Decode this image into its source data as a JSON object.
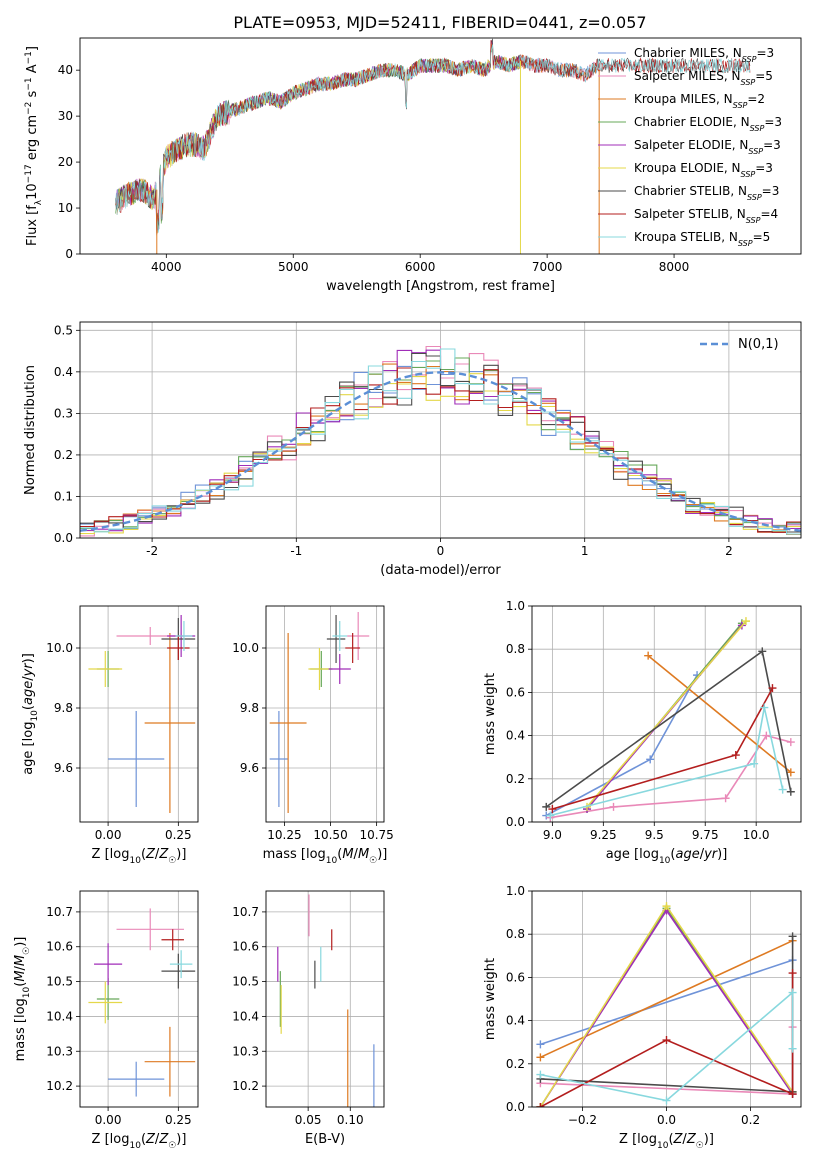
{
  "figure": {
    "title": "PLATE=0953, MJD=52411, FIBERID=0441, z=0.057"
  },
  "colors": {
    "Chabrier MILES": "#6f93d8",
    "Salpeter MILES": "#e989b8",
    "Kroupa MILES": "#de7a22",
    "Chabrier ELODIE": "#67a85a",
    "Salpeter ELODIE": "#a02db8",
    "Kroupa ELODIE": "#e4d84a",
    "Chabrier STELIB": "#4b4b4b",
    "Salpeter STELIB": "#b31e1e",
    "Kroupa STELIB": "#88d8de"
  },
  "legend": {
    "series": [
      {
        "name": "Chabrier MILES",
        "label": "Chabrier MILES, N",
        "sub": "SSP",
        "tail": "=3"
      },
      {
        "name": "Salpeter MILES",
        "label": "Salpeter MILES, N",
        "sub": "SSP",
        "tail": "=5"
      },
      {
        "name": "Kroupa MILES",
        "label": "Kroupa MILES, N",
        "sub": "SSP",
        "tail": "=2"
      },
      {
        "name": "Chabrier ELODIE",
        "label": "Chabrier ELODIE, N",
        "sub": "SSP",
        "tail": "=3"
      },
      {
        "name": "Salpeter ELODIE",
        "label": "Salpeter ELODIE, N",
        "sub": "SSP",
        "tail": "=3"
      },
      {
        "name": "Kroupa ELODIE",
        "label": "Kroupa ELODIE, N",
        "sub": "SSP",
        "tail": "=3"
      },
      {
        "name": "Chabrier STELIB",
        "label": "Chabrier STELIB, N",
        "sub": "SSP",
        "tail": "=3"
      },
      {
        "name": "Salpeter STELIB",
        "label": "Salpeter STELIB, N",
        "sub": "SSP",
        "tail": "=4"
      },
      {
        "name": "Kroupa STELIB",
        "label": "Kroupa STELIB, N",
        "sub": "SSP",
        "tail": "=5"
      }
    ],
    "normal_label": "N(0,1)"
  },
  "chart_data": [
    {
      "id": "spectrum",
      "type": "line",
      "xlabel": "wavelength [Angstrom, rest frame]",
      "ylabel": "Flux [f_λ10^-17 erg cm^-2 s^-1 A^-1]",
      "xlim": [
        3320,
        9000
      ],
      "ylim": [
        0,
        47
      ],
      "xticks": [
        4000,
        5000,
        6000,
        7000,
        8000
      ],
      "yticks": [
        0,
        10,
        20,
        30,
        40
      ],
      "grid": false,
      "legend_position": "top-right",
      "data_x": [
        3600,
        3700,
        3800,
        3900,
        4000,
        4100,
        4200,
        4300,
        4400,
        4500,
        4600,
        4700,
        4800,
        4900,
        5000,
        5100,
        5200,
        5300,
        5400,
        5500,
        5600,
        5700,
        5800,
        5900,
        6000,
        6100,
        6200,
        6300,
        6400,
        6500,
        6600,
        6700,
        6800,
        6900,
        7000,
        7100,
        7200,
        7300,
        7400
      ],
      "data_y": [
        11,
        13,
        14,
        12,
        21,
        23,
        24,
        23,
        30,
        31,
        32,
        33,
        34,
        33,
        35,
        36,
        37,
        37,
        38,
        38,
        39,
        40,
        40,
        39,
        41,
        41,
        41,
        40,
        41,
        40,
        42,
        41,
        42,
        41,
        41,
        40,
        40,
        39,
        41
      ],
      "series_x_range": {
        "Chabrier MILES": [
          3600,
          7400
        ],
        "Salpeter MILES": [
          3600,
          7400
        ],
        "Kroupa MILES": [
          3600,
          7400
        ],
        "Chabrier ELODIE": [
          3600,
          6800
        ],
        "Salpeter ELODIE": [
          3600,
          6800
        ],
        "Kroupa ELODIE": [
          3600,
          6800
        ],
        "Chabrier STELIB": [
          3600,
          8600
        ],
        "Salpeter STELIB": [
          3600,
          8600
        ],
        "Kroupa STELIB": [
          3600,
          8600
        ]
      }
    },
    {
      "id": "histogram",
      "type": "line",
      "xlabel": "(data-model)/error",
      "ylabel": "Normed distribution",
      "xlim": [
        -2.5,
        2.5
      ],
      "ylim": [
        0,
        0.52
      ],
      "xticks": [
        -2,
        -1,
        0,
        1,
        2
      ],
      "yticks": [
        0.0,
        0.1,
        0.2,
        0.3,
        0.4,
        0.5
      ],
      "grid": true,
      "legend_position": "top-right",
      "bin_width": 0.1,
      "bin_start": -2.5,
      "normal_curve": {
        "mean": 0,
        "sigma": 1
      }
    },
    {
      "id": "age-vs-Z",
      "type": "scatter",
      "xlabel": "Z [log10(Z/Z☉)]",
      "ylabel": "age  [log10(age/yr)]",
      "xlim": [
        -0.1,
        0.32
      ],
      "ylim": [
        9.42,
        10.14
      ],
      "xticks": [
        0.0,
        0.25
      ],
      "yticks": [
        9.6,
        9.8,
        10.0
      ],
      "grid": true,
      "points": [
        {
          "series": "Chabrier MILES",
          "x": 0.1,
          "y": 9.63,
          "xerr": 0.1,
          "yerr": 0.16
        },
        {
          "series": "Kroupa MILES",
          "x": 0.22,
          "y": 9.75,
          "xerr": 0.09,
          "yerr": 0.3
        },
        {
          "series": "Salpeter MILES",
          "x": 0.15,
          "y": 10.04,
          "xerr": 0.12,
          "yerr": 0.03
        },
        {
          "series": "Chabrier ELODIE",
          "x": 0.0,
          "y": 9.93,
          "xerr": 0.04,
          "yerr": 0.06
        },
        {
          "series": "Kroupa ELODIE",
          "x": -0.01,
          "y": 9.93,
          "xerr": 0.06,
          "yerr": 0.06
        },
        {
          "series": "Salpeter ELODIE",
          "x": 0.26,
          "y": 10.04,
          "xerr": 0.05,
          "yerr": 0.07
        },
        {
          "series": "Chabrier STELIB",
          "x": 0.25,
          "y": 10.03,
          "xerr": 0.06,
          "yerr": 0.07
        },
        {
          "series": "Salpeter STELIB",
          "x": 0.25,
          "y": 10.0,
          "xerr": 0.04,
          "yerr": 0.04
        },
        {
          "series": "Kroupa STELIB",
          "x": 0.27,
          "y": 10.04,
          "xerr": 0.03,
          "yerr": 0.05
        }
      ]
    },
    {
      "id": "age-vs-mass",
      "type": "scatter",
      "xlabel": "mass [log10(M/M☉)]",
      "ylabel": "",
      "xlim": [
        10.15,
        10.79
      ],
      "ylim": [
        9.42,
        10.14
      ],
      "xticks": [
        10.25,
        10.5,
        10.75
      ],
      "yticks": [
        9.6,
        9.8,
        10.0
      ],
      "grid": true,
      "points": [
        {
          "series": "Chabrier MILES",
          "x": 10.22,
          "y": 9.63,
          "xerr": 0.05,
          "yerr": 0.16
        },
        {
          "series": "Kroupa MILES",
          "x": 10.27,
          "y": 9.75,
          "xerr": 0.1,
          "yerr": 0.3
        },
        {
          "series": "Salpeter MILES",
          "x": 10.65,
          "y": 10.04,
          "xerr": 0.06,
          "yerr": 0.08
        },
        {
          "series": "Chabrier ELODIE",
          "x": 10.45,
          "y": 9.93,
          "xerr": 0.06,
          "yerr": 0.06
        },
        {
          "series": "Kroupa ELODIE",
          "x": 10.44,
          "y": 9.93,
          "xerr": 0.06,
          "yerr": 0.07
        },
        {
          "series": "Salpeter ELODIE",
          "x": 10.55,
          "y": 9.93,
          "xerr": 0.06,
          "yerr": 0.05
        },
        {
          "series": "Chabrier STELIB",
          "x": 10.53,
          "y": 10.03,
          "xerr": 0.05,
          "yerr": 0.08
        },
        {
          "series": "Salpeter STELIB",
          "x": 10.62,
          "y": 10.0,
          "xerr": 0.04,
          "yerr": 0.05
        },
        {
          "series": "Kroupa STELIB",
          "x": 10.55,
          "y": 10.04,
          "xerr": 0.04,
          "yerr": 0.05
        }
      ]
    },
    {
      "id": "weight-vs-age",
      "type": "line",
      "xlabel": "age  [log10(age/yr)]",
      "ylabel": "mass weight",
      "xlim": [
        8.9,
        10.22
      ],
      "ylim": [
        0,
        1.0
      ],
      "xticks": [
        9.0,
        9.25,
        9.5,
        9.75,
        10.0
      ],
      "yticks": [
        0.0,
        0.2,
        0.4,
        0.6,
        0.8,
        1.0
      ],
      "grid": true,
      "series": [
        {
          "name": "Chabrier MILES",
          "x": [
            8.97,
            9.48,
            9.71
          ],
          "y": [
            0.03,
            0.29,
            0.68
          ]
        },
        {
          "name": "Salpeter MILES",
          "x": [
            8.99,
            9.3,
            9.85,
            10.05,
            10.17
          ],
          "y": [
            0.02,
            0.07,
            0.11,
            0.4,
            0.37
          ]
        },
        {
          "name": "Kroupa MILES",
          "x": [
            9.47,
            10.17
          ],
          "y": [
            0.77,
            0.23
          ]
        },
        {
          "name": "Chabrier ELODIE",
          "x": [
            9.17,
            9.93
          ],
          "y": [
            0.06,
            0.92
          ]
        },
        {
          "name": "Salpeter ELODIE",
          "x": [
            9.17,
            9.93
          ],
          "y": [
            0.06,
            0.91
          ]
        },
        {
          "name": "Kroupa ELODIE",
          "x": [
            9.17,
            9.95
          ],
          "y": [
            0.07,
            0.93
          ]
        },
        {
          "name": "Chabrier STELIB",
          "x": [
            8.97,
            10.03,
            10.17
          ],
          "y": [
            0.07,
            0.79,
            0.14
          ]
        },
        {
          "name": "Salpeter STELIB",
          "x": [
            9.0,
            9.9,
            10.08
          ],
          "y": [
            0.06,
            0.31,
            0.62
          ]
        },
        {
          "name": "Kroupa STELIB",
          "x": [
            8.99,
            9.99,
            10.04,
            10.13
          ],
          "y": [
            0.03,
            0.27,
            0.53,
            0.15
          ]
        }
      ]
    },
    {
      "id": "mass-vs-Z",
      "type": "scatter",
      "xlabel": "Z [log10(Z/Z☉)]",
      "ylabel": "mass [log10(M/M☉)]",
      "xlim": [
        -0.1,
        0.32
      ],
      "ylim": [
        10.14,
        10.76
      ],
      "xticks": [
        0.0,
        0.25
      ],
      "yticks": [
        10.2,
        10.3,
        10.4,
        10.5,
        10.6,
        10.7
      ],
      "grid": true,
      "points": [
        {
          "series": "Chabrier MILES",
          "x": 0.1,
          "y": 10.22,
          "xerr": 0.1,
          "yerr": 0.05
        },
        {
          "series": "Kroupa MILES",
          "x": 0.22,
          "y": 10.27,
          "xerr": 0.09,
          "yerr": 0.1
        },
        {
          "series": "Salpeter MILES",
          "x": 0.15,
          "y": 10.65,
          "xerr": 0.12,
          "yerr": 0.06
        },
        {
          "series": "Chabrier ELODIE",
          "x": 0.0,
          "y": 10.45,
          "xerr": 0.04,
          "yerr": 0.06
        },
        {
          "series": "Kroupa ELODIE",
          "x": -0.01,
          "y": 10.44,
          "xerr": 0.06,
          "yerr": 0.06
        },
        {
          "series": "Salpeter ELODIE",
          "x": 0.0,
          "y": 10.55,
          "xerr": 0.05,
          "yerr": 0.06
        },
        {
          "series": "Chabrier STELIB",
          "x": 0.25,
          "y": 10.53,
          "xerr": 0.06,
          "yerr": 0.05
        },
        {
          "series": "Salpeter STELIB",
          "x": 0.23,
          "y": 10.62,
          "xerr": 0.04,
          "yerr": 0.03
        },
        {
          "series": "Kroupa STELIB",
          "x": 0.26,
          "y": 10.55,
          "xerr": 0.04,
          "yerr": 0.04
        }
      ]
    },
    {
      "id": "mass-vs-ebv",
      "type": "scatter",
      "xlabel": "E(B-V)",
      "ylabel": "",
      "xlim": [
        0.0,
        0.14
      ],
      "ylim": [
        10.14,
        10.76
      ],
      "xticks": [
        0.05,
        0.1
      ],
      "yticks": [
        10.2,
        10.3,
        10.4,
        10.5,
        10.6,
        10.7
      ],
      "grid": true,
      "points": [
        {
          "series": "Chabrier MILES",
          "x": 0.128,
          "y": 10.22,
          "xerr": 0.0,
          "yerr": 0.1
        },
        {
          "series": "Kroupa MILES",
          "x": 0.097,
          "y": 10.27,
          "xerr": 0.0,
          "yerr": 0.15
        },
        {
          "series": "Salpeter MILES",
          "x": 0.051,
          "y": 10.69,
          "xerr": 0.0,
          "yerr": 0.06
        },
        {
          "series": "Chabrier ELODIE",
          "x": 0.017,
          "y": 10.45,
          "xerr": 0.0,
          "yerr": 0.08
        },
        {
          "series": "Kroupa ELODIE",
          "x": 0.018,
          "y": 10.42,
          "xerr": 0.0,
          "yerr": 0.07
        },
        {
          "series": "Salpeter ELODIE",
          "x": 0.014,
          "y": 10.55,
          "xerr": 0.0,
          "yerr": 0.05
        },
        {
          "series": "Chabrier STELIB",
          "x": 0.058,
          "y": 10.52,
          "xerr": 0.0,
          "yerr": 0.04
        },
        {
          "series": "Salpeter STELIB",
          "x": 0.078,
          "y": 10.62,
          "xerr": 0.0,
          "yerr": 0.03
        },
        {
          "series": "Kroupa STELIB",
          "x": 0.065,
          "y": 10.55,
          "xerr": 0.0,
          "yerr": 0.05
        }
      ]
    },
    {
      "id": "weight-vs-Z",
      "type": "line",
      "xlabel": "Z [log10(Z/Z☉)]",
      "ylabel": "mass weight",
      "xlim": [
        -0.32,
        0.32
      ],
      "ylim": [
        0,
        1.0
      ],
      "xticks": [
        -0.2,
        0.0,
        0.2
      ],
      "yticks": [
        0.0,
        0.2,
        0.4,
        0.6,
        0.8,
        1.0
      ],
      "grid": true,
      "series": [
        {
          "name": "Chabrier MILES",
          "x": [
            -0.3,
            0.3
          ],
          "y": [
            0.29,
            0.68
          ]
        },
        {
          "name": "Salpeter MILES",
          "x": [
            -0.3,
            0.3,
            0.3
          ],
          "y": [
            0.11,
            0.06,
            0.37
          ]
        },
        {
          "name": "Kroupa MILES",
          "x": [
            -0.3,
            0.3
          ],
          "y": [
            0.23,
            0.77
          ]
        },
        {
          "name": "Chabrier ELODIE",
          "x": [
            -0.3,
            0.0,
            0.3
          ],
          "y": [
            0.0,
            0.92,
            0.06
          ]
        },
        {
          "name": "Salpeter ELODIE",
          "x": [
            -0.3,
            0.0,
            0.3
          ],
          "y": [
            0.0,
            0.91,
            0.06
          ]
        },
        {
          "name": "Kroupa ELODIE",
          "x": [
            -0.3,
            0.0,
            0.3
          ],
          "y": [
            0.0,
            0.93,
            0.07
          ]
        },
        {
          "name": "Chabrier STELIB",
          "x": [
            -0.3,
            0.3,
            0.3
          ],
          "y": [
            0.13,
            0.07,
            0.79
          ]
        },
        {
          "name": "Salpeter STELIB",
          "x": [
            -0.3,
            0.0,
            0.3,
            0.3
          ],
          "y": [
            0.0,
            0.31,
            0.06,
            0.62
          ]
        },
        {
          "name": "Kroupa STELIB",
          "x": [
            -0.3,
            0.0,
            0.3,
            0.3
          ],
          "y": [
            0.15,
            0.03,
            0.53,
            0.27
          ]
        }
      ]
    }
  ]
}
